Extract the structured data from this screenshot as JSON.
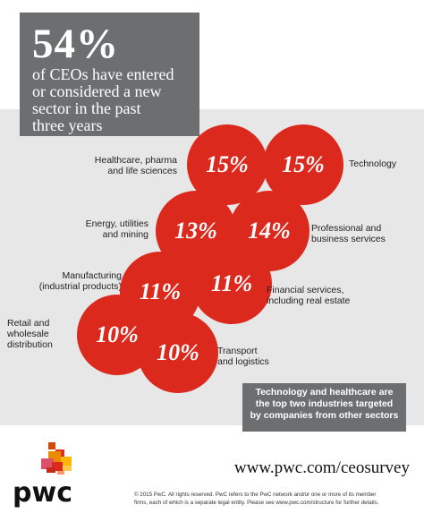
{
  "headline": {
    "stat": "54%",
    "lines": [
      "of CEOs have entered",
      "or considered a new",
      "sector in the past",
      "three years"
    ]
  },
  "items": [
    {
      "value": "15%",
      "label": [
        "Healthcare, pharma",
        "and life sciences"
      ]
    },
    {
      "value": "15%",
      "label": [
        "Technology"
      ]
    },
    {
      "value": "13%",
      "label": [
        "Energy, utilities",
        "and mining"
      ]
    },
    {
      "value": "14%",
      "label": [
        "Professional and",
        "business services"
      ]
    },
    {
      "value": "11%",
      "label": [
        "Manufacturing",
        "(industrial products)"
      ]
    },
    {
      "value": "11%",
      "label": [
        "Financial services,",
        "including real estate"
      ]
    },
    {
      "value": "10%",
      "label": [
        "Retail and",
        "wholesale",
        "distribution"
      ]
    },
    {
      "value": "10%",
      "label": [
        "Transport",
        "and logistics"
      ]
    }
  ],
  "callout": [
    "Technology and healthcare are",
    "the top two industries targeted",
    "by companies from other sectors"
  ],
  "url": "www.pwc.com/ceosurvey",
  "logo_text": "pwc",
  "copyright": [
    "© 2015 PwC. All rights reserved. PwC refers to the PwC network and/or one or more of its member",
    "firms, each of which is a separate legal entity. Please see www.pwc.com/structure for further details."
  ],
  "colors": {
    "accent": "#dc291e",
    "dark_gray": "#6d6e70",
    "panel": "#e7e7e7"
  }
}
